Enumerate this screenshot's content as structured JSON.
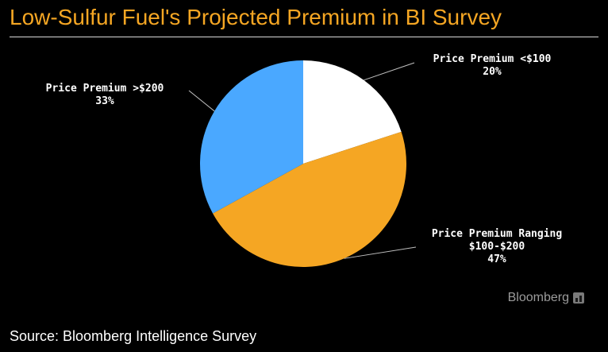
{
  "chart_data": {
    "type": "pie",
    "title": "Low-Sulfur Fuel's Projected Premium in BI Survey",
    "slices": [
      {
        "label_lines": [
          "Price Premium <$100"
        ],
        "value": 20,
        "percent_label": "20%",
        "color": "#ffffff"
      },
      {
        "label_lines": [
          "Price Premium Ranging",
          "$100-$200"
        ],
        "value": 47,
        "percent_label": "47%",
        "color": "#f5a623"
      },
      {
        "label_lines": [
          "Price Premium >$200"
        ],
        "value": 33,
        "percent_label": "33%",
        "color": "#4aa8ff"
      }
    ],
    "source": "Source: Bloomberg Intelligence Survey"
  },
  "branding": {
    "name": "Bloomberg",
    "icon": "bloomberg-chart-icon"
  },
  "colors": {
    "background": "#000000",
    "title": "#f5a623",
    "label_text": "#ffffff",
    "leader_line": "#bfbfbf"
  }
}
